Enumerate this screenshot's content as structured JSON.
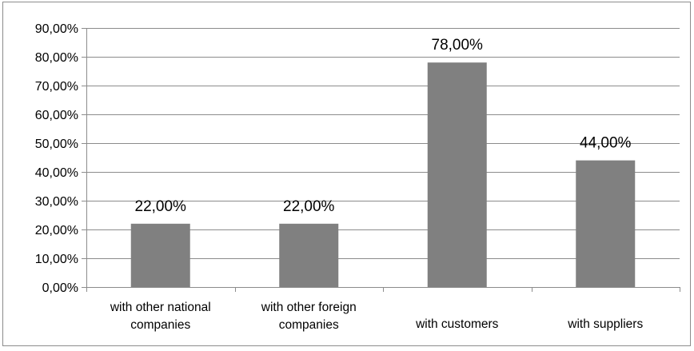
{
  "chart_data": {
    "type": "bar",
    "title": "",
    "xlabel": "",
    "ylabel": "",
    "categories": [
      [
        "with other national",
        "companies"
      ],
      [
        "with other foreign",
        "companies"
      ],
      [
        "with customers"
      ],
      [
        "with suppliers"
      ]
    ],
    "values": [
      22,
      22,
      78,
      44
    ],
    "data_labels": [
      "22,00%",
      "22,00%",
      "78,00%",
      "44,00%"
    ],
    "ylim": [
      0,
      90
    ],
    "y_ticks": [
      0,
      10,
      20,
      30,
      40,
      50,
      60,
      70,
      80,
      90
    ],
    "y_tick_labels": [
      "0,00%",
      "10,00%",
      "20,00%",
      "30,00%",
      "40,00%",
      "50,00%",
      "60,00%",
      "70,00%",
      "80,00%",
      "90,00%"
    ],
    "grid": true,
    "legend": "none",
    "colors": {
      "bar": "#808080",
      "grid": "#8c8c8c",
      "axis": "#8c8c8c",
      "text": "#000000"
    }
  }
}
